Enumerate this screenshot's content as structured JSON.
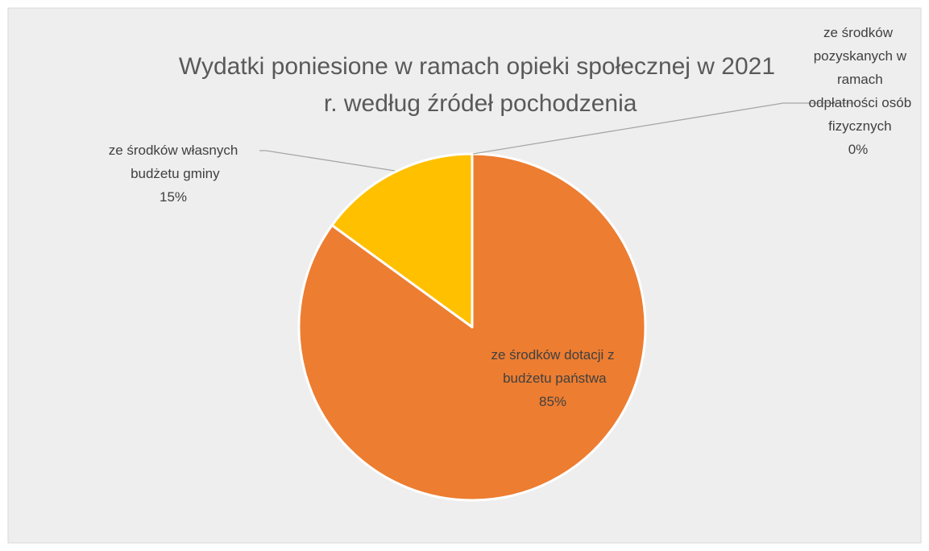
{
  "chart_data": {
    "type": "pie",
    "title": "Wydatki poniesione w ramach opieki społecznej w 2021 r.  według źródeł pochodzenia",
    "categories": [
      "ze środków dotacji z budżetu państwa",
      "ze środków własnych budżetu gminy",
      "ze środków pozyskanych w ramach odpłatności osób fizycznych"
    ],
    "values": [
      85,
      15,
      0
    ],
    "value_labels": [
      "85%",
      "15%",
      "0%"
    ],
    "colors": [
      "#ed7d31",
      "#ffc000",
      "#a5a5a5"
    ]
  }
}
